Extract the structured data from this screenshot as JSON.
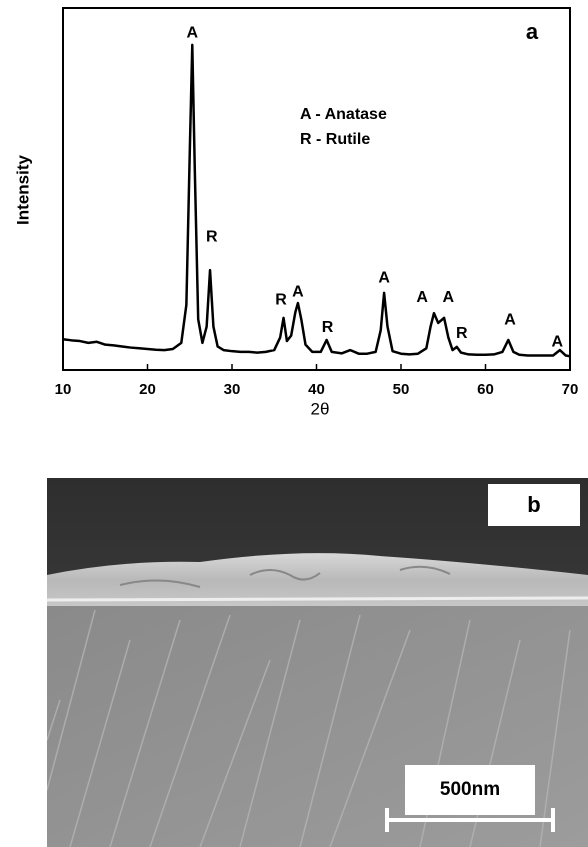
{
  "chart_data": {
    "type": "line",
    "panel_label": "a",
    "xlabel": "2θ",
    "ylabel": "Intensity",
    "notes": [
      "A - Anatase",
      "R - Rutile"
    ],
    "color": "#000000",
    "xlim": [
      10,
      70
    ],
    "xticks": [
      10,
      20,
      30,
      40,
      50,
      60,
      70
    ],
    "ylim": [
      0,
      100
    ],
    "x": [
      10,
      11,
      12,
      13,
      14,
      15,
      16,
      17,
      18,
      19,
      20,
      21,
      22,
      23,
      24,
      24.6,
      25.0,
      25.3,
      25.6,
      26.0,
      26.5,
      27.0,
      27.4,
      27.8,
      28.3,
      29,
      30,
      31,
      32,
      33,
      34,
      35,
      35.7,
      36.1,
      36.5,
      37.0,
      37.5,
      37.8,
      38.2,
      38.7,
      39.5,
      40.5,
      41.2,
      41.8,
      43,
      44,
      45,
      46,
      47,
      47.6,
      48.0,
      48.4,
      49,
      50,
      51,
      52,
      53,
      53.5,
      53.9,
      54.4,
      55.1,
      55.6,
      56.1,
      56.6,
      57.1,
      58,
      59,
      60,
      61,
      62,
      62.7,
      63.3,
      64,
      65,
      66,
      67,
      68,
      68.8,
      69.5,
      70
    ],
    "values": [
      8.5,
      8.2,
      8.0,
      7.5,
      7.8,
      7.0,
      6.8,
      6.5,
      6.2,
      6.0,
      5.8,
      5.6,
      5.5,
      5.8,
      7.5,
      18,
      60,
      89.8,
      55,
      14,
      7.5,
      12,
      27.6,
      12,
      6.5,
      5.5,
      5.2,
      5.0,
      5.0,
      4.8,
      5.0,
      5.5,
      9,
      14.4,
      8,
      9.5,
      16,
      18.5,
      14,
      7,
      5.0,
      5.0,
      8.3,
      5.0,
      4.6,
      5.5,
      4.5,
      4.5,
      5.0,
      11,
      21.3,
      12,
      5.2,
      4.5,
      4.3,
      4.5,
      6,
      12,
      15.7,
      13,
      14.4,
      9,
      5.5,
      6.4,
      4.8,
      4.3,
      4.2,
      4.2,
      4.3,
      5,
      8.3,
      5,
      4.2,
      4.0,
      4.0,
      4.0,
      4.0,
      5.5,
      4.0,
      3.8
    ],
    "annotations": [
      {
        "text": "A",
        "x": 25.3,
        "y": 93
      },
      {
        "text": "R",
        "x": 27.6,
        "y": 36.7
      },
      {
        "text": "R",
        "x": 35.8,
        "y": 19.3
      },
      {
        "text": "A",
        "x": 37.8,
        "y": 21.5
      },
      {
        "text": "R",
        "x": 41.3,
        "y": 11.6
      },
      {
        "text": "A",
        "x": 48.0,
        "y": 25.4
      },
      {
        "text": "A",
        "x": 52.5,
        "y": 19.9
      },
      {
        "text": "A",
        "x": 55.6,
        "y": 19.9
      },
      {
        "text": "R",
        "x": 57.2,
        "y": 10
      },
      {
        "text": "A",
        "x": 62.9,
        "y": 13.8
      },
      {
        "text": "A",
        "x": 68.5,
        "y": 7.7
      }
    ]
  },
  "sem_panel": {
    "label": "b",
    "scale_bar": "500nm"
  }
}
